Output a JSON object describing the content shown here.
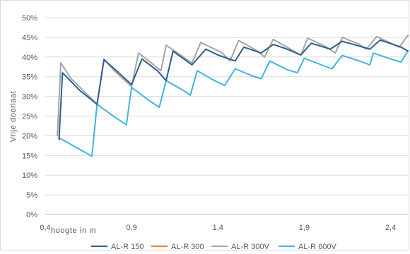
{
  "chart_data": {
    "type": "line",
    "title": "",
    "xlabel": "hoogte in m",
    "ylabel": "Vrije doorlaat",
    "xlim": [
      0.4,
      2.5
    ],
    "ylim": [
      0,
      0.5
    ],
    "x_ticks": [
      0.4,
      0.9,
      1.4,
      1.9,
      2.4
    ],
    "x_tick_labels": [
      "0,4",
      "0,9",
      "1,4",
      "1,9",
      "2,4"
    ],
    "y_ticks": [
      0,
      0.05,
      0.1,
      0.15,
      0.2,
      0.25,
      0.3,
      0.35,
      0.4,
      0.45,
      0.5
    ],
    "y_tick_labels": [
      "0%",
      "5%",
      "10%",
      "15%",
      "20%",
      "25%",
      "30%",
      "35%",
      "40%",
      "45%",
      "50%"
    ],
    "grid": "horizontal",
    "legend_position": "bottom",
    "series": [
      {
        "name": "AL-R 150",
        "color": "#2e5f8a",
        "points": [
          [
            0.48,
            0.19
          ],
          [
            0.5,
            0.36
          ],
          [
            0.6,
            0.315
          ],
          [
            0.7,
            0.28
          ],
          [
            0.74,
            0.393
          ],
          [
            0.8,
            0.37
          ],
          [
            0.9,
            0.33
          ],
          [
            0.96,
            0.395
          ],
          [
            1.05,
            0.365
          ],
          [
            1.1,
            0.34
          ],
          [
            1.14,
            0.415
          ],
          [
            1.25,
            0.38
          ],
          [
            1.33,
            0.42
          ],
          [
            1.4,
            0.405
          ],
          [
            1.5,
            0.39
          ],
          [
            1.55,
            0.425
          ],
          [
            1.65,
            0.41
          ],
          [
            1.72,
            0.432
          ],
          [
            1.8,
            0.42
          ],
          [
            1.88,
            0.405
          ],
          [
            1.94,
            0.435
          ],
          [
            2.05,
            0.42
          ],
          [
            2.12,
            0.44
          ],
          [
            2.2,
            0.43
          ],
          [
            2.28,
            0.42
          ],
          [
            2.34,
            0.443
          ],
          [
            2.46,
            0.425
          ],
          [
            2.5,
            0.415
          ]
        ]
      },
      {
        "name": "AL-R 300",
        "color": "#ed7d31",
        "points": []
      },
      {
        "name": "AL-R 300V",
        "color": "#a5a5a5",
        "points": [
          [
            0.47,
            0.2
          ],
          [
            0.49,
            0.385
          ],
          [
            0.55,
            0.345
          ],
          [
            0.62,
            0.315
          ],
          [
            0.7,
            0.28
          ],
          [
            0.74,
            0.395
          ],
          [
            0.8,
            0.365
          ],
          [
            0.9,
            0.325
          ],
          [
            0.94,
            0.41
          ],
          [
            1.0,
            0.39
          ],
          [
            1.07,
            0.365
          ],
          [
            1.1,
            0.43
          ],
          [
            1.2,
            0.4
          ],
          [
            1.25,
            0.385
          ],
          [
            1.3,
            0.437
          ],
          [
            1.42,
            0.412
          ],
          [
            1.47,
            0.39
          ],
          [
            1.52,
            0.442
          ],
          [
            1.63,
            0.415
          ],
          [
            1.67,
            0.4
          ],
          [
            1.72,
            0.445
          ],
          [
            1.82,
            0.42
          ],
          [
            1.88,
            0.405
          ],
          [
            1.92,
            0.448
          ],
          [
            2.03,
            0.425
          ],
          [
            2.08,
            0.41
          ],
          [
            2.12,
            0.45
          ],
          [
            2.22,
            0.432
          ],
          [
            2.26,
            0.42
          ],
          [
            2.32,
            0.452
          ],
          [
            2.45,
            0.425
          ],
          [
            2.5,
            0.455
          ]
        ]
      },
      {
        "name": "AL-R 600V",
        "color": "#3fb3e0",
        "points": [
          [
            0.48,
            0.195
          ],
          [
            0.52,
            0.185
          ],
          [
            0.6,
            0.165
          ],
          [
            0.67,
            0.148
          ],
          [
            0.7,
            0.28
          ],
          [
            0.8,
            0.248
          ],
          [
            0.87,
            0.228
          ],
          [
            0.9,
            0.323
          ],
          [
            1.0,
            0.29
          ],
          [
            1.06,
            0.272
          ],
          [
            1.1,
            0.34
          ],
          [
            1.2,
            0.315
          ],
          [
            1.24,
            0.303
          ],
          [
            1.28,
            0.365
          ],
          [
            1.38,
            0.34
          ],
          [
            1.44,
            0.328
          ],
          [
            1.5,
            0.37
          ],
          [
            1.6,
            0.352
          ],
          [
            1.65,
            0.345
          ],
          [
            1.7,
            0.39
          ],
          [
            1.8,
            0.368
          ],
          [
            1.86,
            0.36
          ],
          [
            1.9,
            0.397
          ],
          [
            2.0,
            0.38
          ],
          [
            2.06,
            0.37
          ],
          [
            2.12,
            0.404
          ],
          [
            2.22,
            0.39
          ],
          [
            2.28,
            0.38
          ],
          [
            2.3,
            0.41
          ],
          [
            2.4,
            0.395
          ],
          [
            2.46,
            0.387
          ],
          [
            2.5,
            0.415
          ]
        ]
      }
    ]
  }
}
